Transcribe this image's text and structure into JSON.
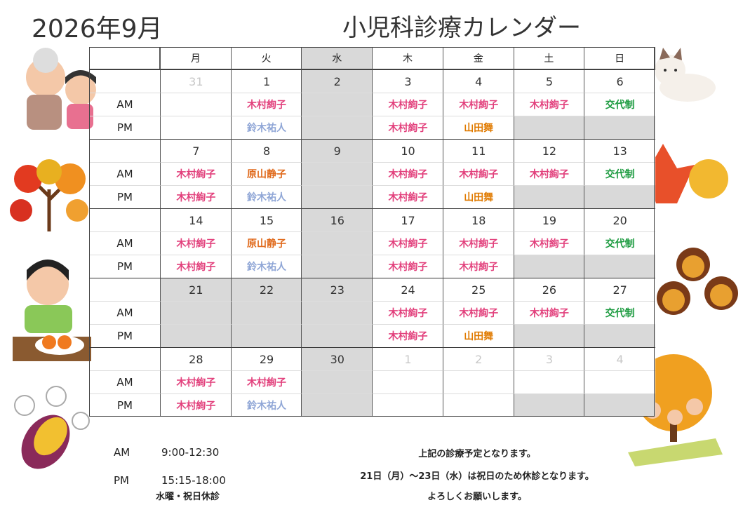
{
  "header": {
    "title": "2026年9月",
    "subtitle": "小児科診療カレンダー"
  },
  "weekdays": [
    "月",
    "火",
    "水",
    "木",
    "金",
    "土",
    "日"
  ],
  "row_labels": [
    "AM",
    "PM"
  ],
  "closed_weekday": 2,
  "pm_closed_weekdays": [
    5,
    6
  ],
  "doctor_colors": {
    "木村絢子": "#e2407c",
    "鈴木祐人": "#8fa6d6",
    "原山静子": "#e06a1c",
    "山田舞": "#e07a00",
    "交代制": "#1a9a3e"
  },
  "weeks": [
    {
      "days": [
        31,
        1,
        2,
        3,
        4,
        5,
        6
      ],
      "outside": [
        0
      ],
      "am": [
        null,
        "木村絢子",
        null,
        "木村絢子",
        "木村絢子",
        "木村絢子",
        "交代制"
      ],
      "pm": [
        null,
        "鈴木祐人",
        null,
        "木村絢子",
        "山田舞",
        null,
        null
      ]
    },
    {
      "days": [
        7,
        8,
        9,
        10,
        11,
        12,
        13
      ],
      "am": [
        "木村絢子",
        "原山静子",
        null,
        "木村絢子",
        "木村絢子",
        "木村絢子",
        "交代制"
      ],
      "pm": [
        "木村絢子",
        "鈴木祐人",
        null,
        "木村絢子",
        "山田舞",
        null,
        null
      ]
    },
    {
      "days": [
        14,
        15,
        16,
        17,
        18,
        19,
        20
      ],
      "am": [
        "木村絢子",
        "原山静子",
        null,
        "木村絢子",
        "木村絢子",
        "木村絢子",
        "交代制"
      ],
      "pm": [
        "木村絢子",
        "鈴木祐人",
        null,
        "木村絢子",
        "木村絢子",
        null,
        null
      ]
    },
    {
      "days": [
        21,
        22,
        23,
        24,
        25,
        26,
        27
      ],
      "closed": [
        0,
        1
      ],
      "am": [
        null,
        null,
        null,
        "木村絢子",
        "木村絢子",
        "木村絢子",
        "交代制"
      ],
      "pm": [
        null,
        null,
        null,
        "木村絢子",
        "山田舞",
        null,
        null
      ]
    },
    {
      "days": [
        28,
        29,
        30,
        1,
        2,
        3,
        4
      ],
      "outside": [
        3,
        4,
        5,
        6
      ],
      "am": [
        "木村絢子",
        "木村絢子",
        null,
        null,
        null,
        null,
        null
      ],
      "pm": [
        "木村絢子",
        "鈴木祐人",
        null,
        null,
        null,
        null,
        null
      ]
    }
  ],
  "footer": {
    "hours": [
      {
        "label": "AM",
        "time": "9:00-12:30"
      },
      {
        "label": "PM",
        "time": "15:15-18:00"
      }
    ],
    "closed_note": "水曜・祝日休診",
    "notes": [
      "上記の診療予定となります。",
      "21日（月）～23日（水）は祝日のため休診となります。",
      "よろしくお願いします。"
    ]
  }
}
